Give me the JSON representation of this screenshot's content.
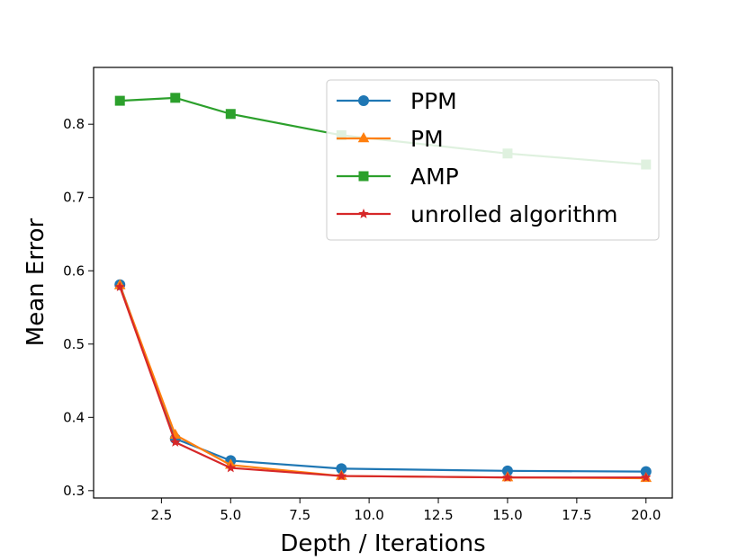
{
  "chart_data": {
    "type": "line",
    "title": "",
    "xlabel": "Depth / Iterations",
    "ylabel": "Mean Error",
    "xlim": [
      0.05,
      20.95
    ],
    "ylim": [
      0.29,
      0.8775
    ],
    "grid": false,
    "legend_position": "top-right",
    "x_ticks": [
      2.5,
      5.0,
      7.5,
      10.0,
      12.5,
      15.0,
      17.5,
      20.0
    ],
    "x_tick_labels": [
      "2.5",
      "5.0",
      "7.5",
      "10.0",
      "12.5",
      "15.0",
      "17.5",
      "20.0"
    ],
    "y_ticks": [
      0.3,
      0.4,
      0.5,
      0.6,
      0.7,
      0.8
    ],
    "y_tick_labels": [
      "0.3",
      "0.4",
      "0.5",
      "0.6",
      "0.7",
      "0.8"
    ],
    "x": [
      1,
      3,
      5,
      9,
      15,
      20
    ],
    "series": [
      {
        "name": "PPM",
        "color": "#1f77b4",
        "marker": "circle",
        "values": [
          0.581,
          0.371,
          0.341,
          0.33,
          0.327,
          0.326
        ]
      },
      {
        "name": "PM",
        "color": "#ff7f0e",
        "marker": "triangle",
        "values": [
          0.58,
          0.376,
          0.335,
          0.32,
          0.318,
          0.317
        ]
      },
      {
        "name": "AMP",
        "color": "#2ca02c",
        "marker": "square",
        "values": [
          0.832,
          0.836,
          0.814,
          0.785,
          0.76,
          0.745
        ]
      },
      {
        "name": "unrolled algorithm",
        "color": "#d62728",
        "marker": "star",
        "values": [
          0.578,
          0.366,
          0.331,
          0.32,
          0.318,
          0.318
        ]
      }
    ]
  }
}
